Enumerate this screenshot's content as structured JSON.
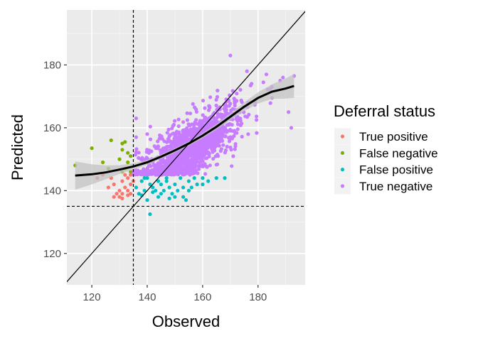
{
  "chart_data": {
    "type": "scatter",
    "xlabel": "Observed",
    "ylabel": "Predicted",
    "xlim": [
      111,
      197
    ],
    "ylim": [
      110,
      197.5
    ],
    "x_ticks": [
      120,
      140,
      160,
      180
    ],
    "y_ticks": [
      120,
      140,
      160,
      180
    ],
    "x_tick_labels": [
      "120",
      "140",
      "160",
      "180"
    ],
    "y_tick_labels": [
      "120",
      "140",
      "160",
      "180"
    ],
    "grid": true,
    "background": "#ebebeb",
    "legend": {
      "title": "Deferral status",
      "placement": "right"
    },
    "thresholds": {
      "x": 135,
      "y": 135
    },
    "identity_line": true,
    "series": [
      {
        "name": "True positive",
        "color": "#F8766D",
        "points": [
          [
            122,
            144
          ],
          [
            124,
            145
          ],
          [
            126,
            141
          ],
          [
            127,
            144
          ],
          [
            128,
            142
          ],
          [
            129,
            139
          ],
          [
            130,
            140
          ],
          [
            131,
            143
          ],
          [
            131,
            139
          ],
          [
            132,
            141
          ],
          [
            133,
            144
          ],
          [
            132,
            145
          ],
          [
            134,
            142
          ],
          [
            133,
            140
          ],
          [
            134,
            145
          ],
          [
            135,
            143
          ],
          [
            130,
            138
          ],
          [
            131,
            137.5
          ],
          [
            133,
            138.5
          ],
          [
            128,
            138
          ],
          [
            134,
            139
          ]
        ]
      },
      {
        "name": "False negative",
        "color": "#7CAE00",
        "points": [
          [
            114,
            148
          ],
          [
            120,
            153.5
          ],
          [
            124,
            149
          ],
          [
            126,
            147
          ],
          [
            127,
            156
          ],
          [
            130,
            150
          ],
          [
            131,
            153
          ],
          [
            131,
            155
          ],
          [
            132,
            155.5
          ],
          [
            133,
            149
          ],
          [
            134,
            151
          ],
          [
            134,
            146
          ],
          [
            133,
            152
          ],
          [
            131,
            146
          ],
          [
            132,
            147
          ]
        ]
      },
      {
        "name": "False positive",
        "color": "#00BFC4",
        "points": [
          [
            136,
            141
          ],
          [
            137,
            139
          ],
          [
            138,
            143
          ],
          [
            139,
            140
          ],
          [
            140,
            137
          ],
          [
            140,
            144
          ],
          [
            141,
            142
          ],
          [
            142,
            141
          ],
          [
            143,
            140
          ],
          [
            144,
            138
          ],
          [
            145,
            142
          ],
          [
            146,
            140
          ],
          [
            147,
            143
          ],
          [
            148,
            141
          ],
          [
            149,
            139
          ],
          [
            150,
            142
          ],
          [
            151,
            140
          ],
          [
            152,
            144
          ],
          [
            153,
            141
          ],
          [
            154,
            137
          ],
          [
            155,
            143
          ],
          [
            156,
            141
          ],
          [
            157,
            144
          ],
          [
            158,
            142
          ],
          [
            160,
            144
          ],
          [
            162,
            143
          ],
          [
            165,
            144
          ],
          [
            168,
            144
          ],
          [
            141,
            132.5
          ],
          [
            138,
            138.5
          ],
          [
            145,
            139
          ],
          [
            150,
            138
          ],
          [
            147,
            144
          ],
          [
            144,
            143
          ],
          [
            153,
            138
          ],
          [
            139,
            144
          ],
          [
            142,
            139.5
          ],
          [
            155,
            140
          ],
          [
            148,
            137.5
          ],
          [
            160,
            142
          ]
        ]
      }
    ],
    "true_negative": {
      "name": "True negative",
      "color": "#C77CFF",
      "count": 1500,
      "x_range": [
        135,
        193
      ],
      "y_range": [
        145,
        183
      ],
      "trend": "y ≈ 0.55·x + 68"
    },
    "smooth_curve": {
      "color": "#000000",
      "band_color": "#c3c3c3",
      "points": [
        [
          114,
          144.8
        ],
        [
          120,
          145.2
        ],
        [
          125,
          145.8
        ],
        [
          130,
          146.7
        ],
        [
          135,
          147.7
        ],
        [
          140,
          149
        ],
        [
          145,
          150.8
        ],
        [
          150,
          152.8
        ],
        [
          155,
          155
        ],
        [
          160,
          157.5
        ],
        [
          165,
          160.3
        ],
        [
          170,
          163.5
        ],
        [
          175,
          166.7
        ],
        [
          180,
          169.5
        ],
        [
          185,
          171.5
        ],
        [
          190,
          172.5
        ],
        [
          193,
          173.3
        ]
      ],
      "band_halfwidth": [
        4.5,
        3.2,
        2.2,
        1.4,
        1.0,
        0.8,
        0.7,
        0.7,
        0.7,
        0.8,
        0.9,
        1.1,
        1.4,
        1.8,
        2.3,
        3.2,
        3.8
      ]
    }
  }
}
